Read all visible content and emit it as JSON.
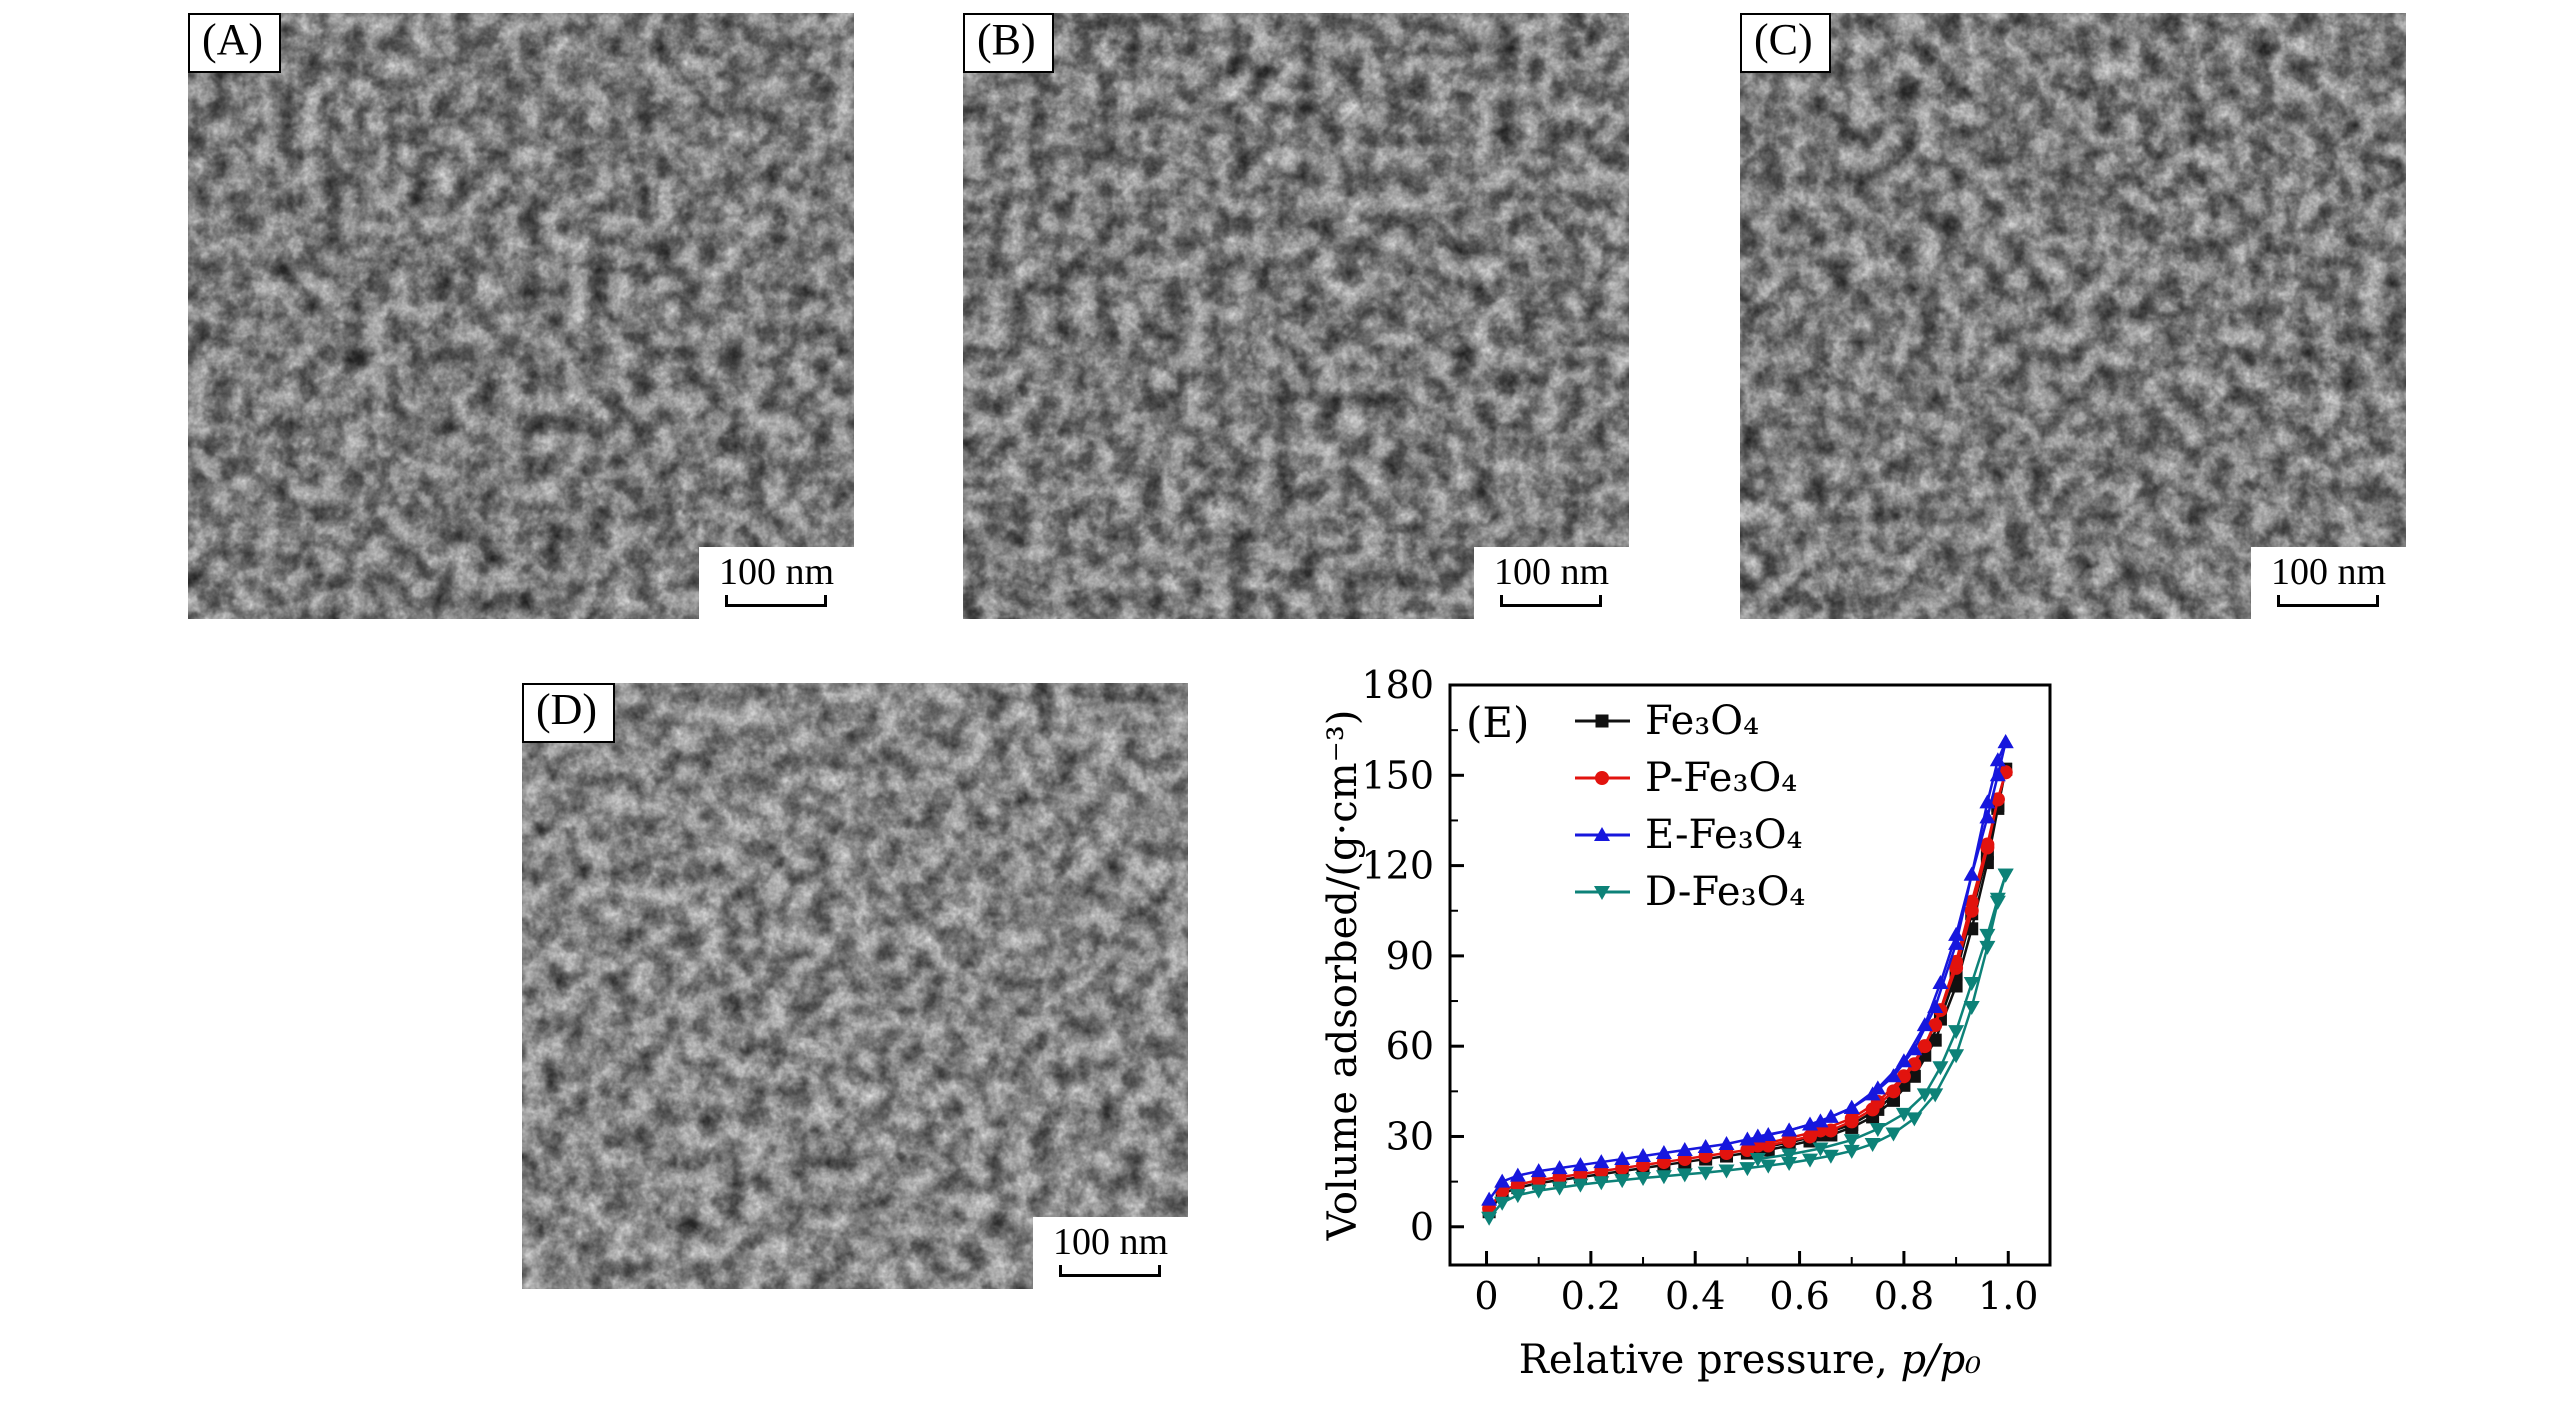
{
  "figure": {
    "panels": [
      {
        "id": "a",
        "label": "(A)",
        "scalebar": "100 nm"
      },
      {
        "id": "b",
        "label": "(B)",
        "scalebar": "100 nm"
      },
      {
        "id": "c",
        "label": "(C)",
        "scalebar": "100 nm"
      },
      {
        "id": "d",
        "label": "(D)",
        "scalebar": "100 nm"
      }
    ]
  },
  "chart_data": {
    "type": "line",
    "panel_label": "(E)",
    "title": "",
    "xlabel_prefix": "Relative pressure, ",
    "xlabel_math": "p/p₀",
    "ylabel": "Volume adsorbed/(g·cm⁻³)",
    "xlim": [
      -0.07,
      1.08
    ],
    "ylim": [
      -12.7,
      180
    ],
    "xticks": [
      0,
      0.2,
      0.4,
      0.6,
      0.8,
      1.0
    ],
    "xtick_labels": [
      "0",
      "0.2",
      "0.4",
      "0.6",
      "0.8",
      "1.0"
    ],
    "xminor": [
      0.1,
      0.3,
      0.5,
      0.7,
      0.9
    ],
    "yticks": [
      0,
      30,
      60,
      90,
      120,
      150,
      180
    ],
    "yminor": [
      15,
      45,
      75,
      105,
      135,
      165
    ],
    "grid": false,
    "legend_position": "top-left",
    "series": [
      {
        "name": "fe3o4",
        "display": "Fe₃O₄",
        "color": "#111111",
        "marker": "square",
        "x": [
          0.005,
          0.03,
          0.06,
          0.1,
          0.14,
          0.18,
          0.22,
          0.26,
          0.3,
          0.34,
          0.38,
          0.42,
          0.46,
          0.5,
          0.54,
          0.58,
          0.62,
          0.66,
          0.7,
          0.74,
          0.78,
          0.82,
          0.86,
          0.9,
          0.93,
          0.96,
          0.98,
          0.995
        ],
        "y": [
          5,
          11,
          13,
          14.5,
          15.5,
          16.5,
          17.5,
          18.5,
          19.5,
          20.5,
          21.5,
          22.5,
          23.5,
          24.5,
          25.5,
          27,
          28.5,
          30.5,
          33,
          36.5,
          42,
          50,
          62,
          80,
          99,
          121,
          139,
          152
        ],
        "x_des": [
          0.995,
          0.98,
          0.96,
          0.93,
          0.9,
          0.87,
          0.84,
          0.8,
          0.75,
          0.7,
          0.64,
          0.58,
          0.52
        ],
        "y_des": [
          152,
          140,
          124,
          104,
          84,
          69,
          57,
          47,
          39,
          34,
          30.5,
          28,
          26
        ]
      },
      {
        "name": "p-fe3o4",
        "display": "P-Fe₃O₄",
        "color": "#e2130e",
        "marker": "circle",
        "x": [
          0.005,
          0.03,
          0.06,
          0.1,
          0.14,
          0.18,
          0.22,
          0.26,
          0.3,
          0.34,
          0.38,
          0.42,
          0.46,
          0.5,
          0.54,
          0.58,
          0.62,
          0.66,
          0.7,
          0.74,
          0.78,
          0.82,
          0.86,
          0.9,
          0.93,
          0.96,
          0.98,
          0.995
        ],
        "y": [
          6,
          12,
          14,
          15.5,
          16.5,
          17.5,
          18.5,
          19.5,
          20.5,
          21.5,
          22.5,
          23.5,
          24.5,
          25.5,
          27,
          28.5,
          30,
          32,
          35,
          39,
          45,
          54,
          67,
          86,
          105,
          126,
          142,
          151
        ],
        "x_des": [
          0.995,
          0.98,
          0.96,
          0.93,
          0.9,
          0.87,
          0.84,
          0.8,
          0.75,
          0.7,
          0.64,
          0.58,
          0.52
        ],
        "y_des": [
          151,
          142,
          127,
          108,
          88,
          72,
          60,
          50,
          41.5,
          36,
          32,
          29.5,
          27
        ]
      },
      {
        "name": "e-fe3o4",
        "display": "E-Fe₃O₄",
        "color": "#1717dd",
        "marker": "triangle-up",
        "x": [
          0.005,
          0.03,
          0.06,
          0.1,
          0.14,
          0.18,
          0.22,
          0.26,
          0.3,
          0.34,
          0.38,
          0.42,
          0.46,
          0.5,
          0.54,
          0.58,
          0.62,
          0.66,
          0.7,
          0.74,
          0.78,
          0.82,
          0.86,
          0.9,
          0.93,
          0.96,
          0.98,
          0.995
        ],
        "y": [
          9,
          15,
          17,
          18.5,
          19.5,
          20.5,
          21.5,
          22.5,
          23.5,
          24.5,
          25.5,
          26.5,
          27.5,
          29,
          30.5,
          32,
          34,
          36.5,
          39.5,
          44,
          50,
          59,
          73,
          94,
          117,
          141,
          155,
          161
        ],
        "x_des": [
          0.995,
          0.98,
          0.96,
          0.93,
          0.9,
          0.87,
          0.84,
          0.8,
          0.75,
          0.7,
          0.64,
          0.58,
          0.52
        ],
        "y_des": [
          161,
          150,
          136,
          117,
          97,
          81,
          67,
          55,
          46,
          39.5,
          35,
          32,
          30
        ]
      },
      {
        "name": "d-fe3o4",
        "display": "D-Fe₃O₄",
        "color": "#0d8278",
        "marker": "triangle-down",
        "x": [
          0.005,
          0.03,
          0.06,
          0.1,
          0.14,
          0.18,
          0.22,
          0.26,
          0.3,
          0.34,
          0.38,
          0.42,
          0.46,
          0.5,
          0.54,
          0.58,
          0.62,
          0.66,
          0.7,
          0.74,
          0.78,
          0.82,
          0.86,
          0.9,
          0.93,
          0.96,
          0.98,
          0.995
        ],
        "y": [
          3,
          8,
          10.5,
          12,
          13,
          14,
          14.8,
          15.5,
          16.2,
          16.8,
          17.4,
          18,
          18.7,
          19.5,
          20.3,
          21.2,
          22.3,
          23.6,
          25.2,
          27.5,
          31,
          36,
          44,
          57,
          73,
          93,
          108,
          117
        ],
        "x_des": [
          0.995,
          0.98,
          0.96,
          0.93,
          0.9,
          0.87,
          0.84,
          0.8,
          0.75,
          0.7,
          0.64,
          0.58,
          0.52
        ],
        "y_des": [
          117,
          109,
          97,
          81,
          65,
          53,
          44,
          37.5,
          32.5,
          28.8,
          26,
          24,
          22.5
        ]
      }
    ]
  }
}
